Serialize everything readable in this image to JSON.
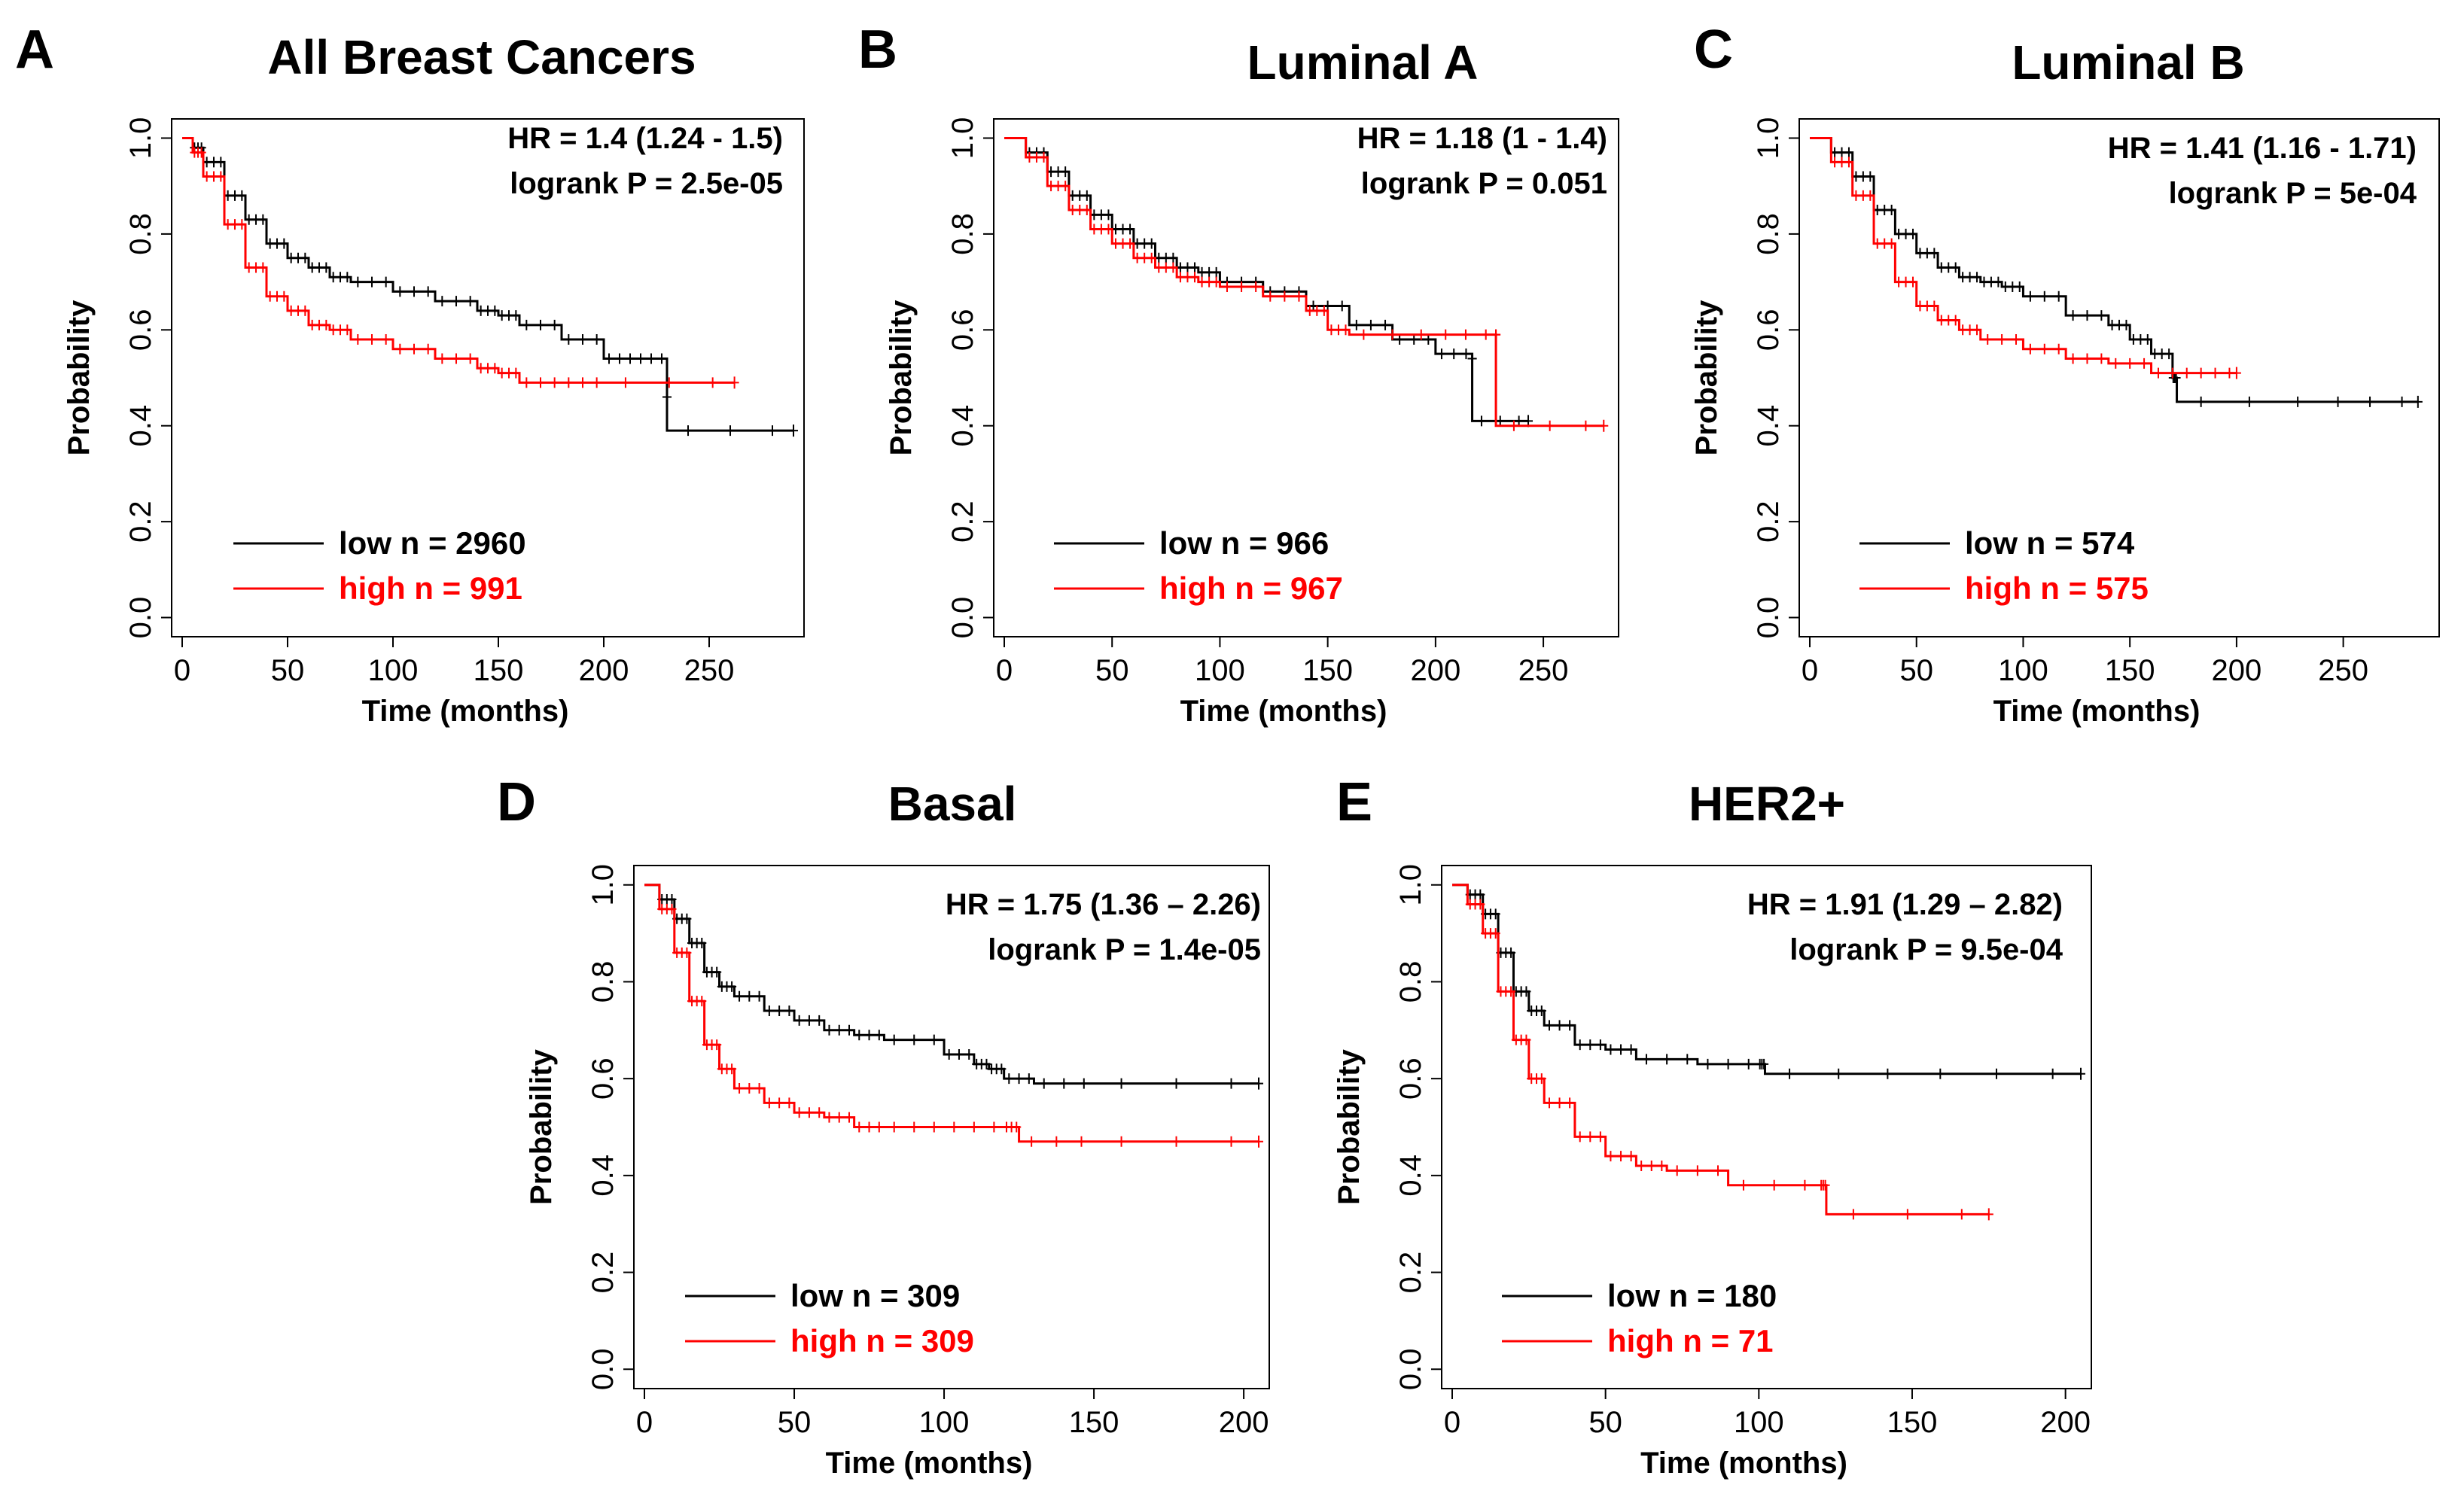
{
  "figure": {
    "type": "Kaplan-Meier survival curves"
  },
  "chart_data": [
    {
      "type": "line",
      "panel": "A",
      "title": "All Breast Cancers",
      "xlabel": "Time (months)",
      "ylabel": "Probability",
      "xlim": [
        0,
        290
      ],
      "ylim": [
        0,
        1
      ],
      "xticks": [
        0,
        50,
        100,
        150,
        200,
        250
      ],
      "yticks": [
        0.0,
        0.2,
        0.4,
        0.6,
        0.8,
        1.0
      ],
      "xtick_labels": [
        "0",
        "50",
        "100",
        "150",
        "200",
        "250"
      ],
      "ytick_labels": [
        "0.0",
        "0.2",
        "0.4",
        "0.6",
        "0.8",
        "1.0"
      ],
      "hr_text": "HR = 1.4 (1.24 - 1.5)",
      "logrank_text": "logrank  P = 2.5e-05",
      "legend": {
        "low": "low n = 2960",
        "high": "high n = 991"
      },
      "series": [
        {
          "name": "low",
          "color": "#000000",
          "x": [
            0,
            5,
            10,
            20,
            30,
            40,
            50,
            60,
            70,
            80,
            100,
            120,
            140,
            150,
            160,
            180,
            200,
            215,
            230,
            230,
            290
          ],
          "y": [
            1.0,
            0.98,
            0.95,
            0.88,
            0.83,
            0.78,
            0.75,
            0.73,
            0.71,
            0.7,
            0.68,
            0.66,
            0.64,
            0.63,
            0.61,
            0.58,
            0.54,
            0.54,
            0.46,
            0.39,
            0.39
          ]
        },
        {
          "name": "high",
          "color": "#ff0000",
          "x": [
            0,
            5,
            10,
            20,
            30,
            40,
            50,
            60,
            70,
            80,
            100,
            120,
            140,
            150,
            160,
            180,
            200,
            262
          ],
          "y": [
            1.0,
            0.97,
            0.92,
            0.82,
            0.73,
            0.67,
            0.64,
            0.61,
            0.6,
            0.58,
            0.56,
            0.54,
            0.52,
            0.51,
            0.49,
            0.49,
            0.49,
            0.49
          ]
        }
      ]
    },
    {
      "type": "line",
      "panel": "B",
      "title": "Luminal A",
      "xlabel": "Time (months)",
      "ylabel": "Probability",
      "xlim": [
        0,
        280
      ],
      "ylim": [
        0,
        1
      ],
      "xticks": [
        0,
        50,
        100,
        150,
        200,
        250
      ],
      "yticks": [
        0.0,
        0.2,
        0.4,
        0.6,
        0.8,
        1.0
      ],
      "xtick_labels": [
        "0",
        "50",
        "100",
        "150",
        "200",
        "250"
      ],
      "ytick_labels": [
        "0.0",
        "0.2",
        "0.4",
        "0.6",
        "0.8",
        "1.0"
      ],
      "hr_text": "HR = 1.18 (1 - 1.4)",
      "logrank_text": "logrank  P = 0.051",
      "legend": {
        "low": "low n = 966",
        "high": "high n = 967"
      },
      "series": [
        {
          "name": "low",
          "color": "#000000",
          "x": [
            0,
            10,
            20,
            30,
            40,
            50,
            60,
            70,
            80,
            90,
            100,
            120,
            140,
            160,
            180,
            200,
            217,
            217,
            243
          ],
          "y": [
            1.0,
            0.97,
            0.93,
            0.88,
            0.84,
            0.81,
            0.78,
            0.75,
            0.73,
            0.72,
            0.7,
            0.68,
            0.65,
            0.61,
            0.58,
            0.55,
            0.54,
            0.41,
            0.41
          ]
        },
        {
          "name": "high",
          "color": "#ff0000",
          "x": [
            0,
            10,
            20,
            30,
            40,
            50,
            60,
            70,
            80,
            90,
            100,
            120,
            140,
            150,
            160,
            200,
            228,
            228,
            278
          ],
          "y": [
            1.0,
            0.96,
            0.9,
            0.85,
            0.81,
            0.78,
            0.75,
            0.73,
            0.71,
            0.7,
            0.69,
            0.67,
            0.64,
            0.6,
            0.59,
            0.59,
            0.59,
            0.4,
            0.4
          ]
        }
      ]
    },
    {
      "type": "line",
      "panel": "C",
      "title": "Luminal B",
      "xlabel": "Time (months)",
      "ylabel": "Probability",
      "xlim": [
        0,
        290
      ],
      "ylim": [
        0,
        1
      ],
      "xticks": [
        0,
        50,
        100,
        150,
        200,
        250
      ],
      "yticks": [
        0.0,
        0.2,
        0.4,
        0.6,
        0.8,
        1.0
      ],
      "xtick_labels": [
        "0",
        "50",
        "100",
        "150",
        "200",
        "250"
      ],
      "ytick_labels": [
        "0.0",
        "0.2",
        "0.4",
        "0.6",
        "0.8",
        "1.0"
      ],
      "hr_text": "HR = 1.41 (1.16 - 1.71)",
      "logrank_text": "logrank  P = 5e-04",
      "legend": {
        "low": "low n = 574",
        "high": "high n = 575"
      },
      "series": [
        {
          "name": "low",
          "color": "#000000",
          "x": [
            0,
            10,
            20,
            30,
            40,
            50,
            60,
            70,
            80,
            90,
            100,
            120,
            140,
            150,
            160,
            170,
            172,
            240,
            285
          ],
          "y": [
            1.0,
            0.97,
            0.92,
            0.85,
            0.8,
            0.76,
            0.73,
            0.71,
            0.7,
            0.69,
            0.67,
            0.63,
            0.61,
            0.58,
            0.55,
            0.5,
            0.45,
            0.45,
            0.45
          ]
        },
        {
          "name": "high",
          "color": "#ff0000",
          "x": [
            0,
            10,
            20,
            30,
            40,
            50,
            60,
            70,
            80,
            100,
            120,
            140,
            160,
            180,
            200
          ],
          "y": [
            1.0,
            0.95,
            0.88,
            0.78,
            0.7,
            0.65,
            0.62,
            0.6,
            0.58,
            0.56,
            0.54,
            0.53,
            0.51,
            0.51,
            0.51
          ]
        }
      ]
    },
    {
      "type": "line",
      "panel": "D",
      "title": "Basal",
      "xlabel": "Time (months)",
      "ylabel": "Probability",
      "xlim": [
        0,
        205
      ],
      "ylim": [
        0,
        1
      ],
      "xticks": [
        0,
        50,
        100,
        150,
        200
      ],
      "yticks": [
        0.0,
        0.2,
        0.4,
        0.6,
        0.8,
        1.0
      ],
      "xtick_labels": [
        "0",
        "50",
        "100",
        "150",
        "200"
      ],
      "ytick_labels": [
        "0.0",
        "0.2",
        "0.4",
        "0.6",
        "0.8",
        "1.0"
      ],
      "hr_text": "HR = 1.75 (1.36 – 2.26)",
      "logrank_text": "logrank  P = 1.4e-05",
      "legend": {
        "low": "low n = 309",
        "high": "high n = 309"
      },
      "series": [
        {
          "name": "low",
          "color": "#000000",
          "x": [
            0,
            5,
            10,
            15,
            20,
            25,
            30,
            40,
            50,
            60,
            70,
            80,
            100,
            110,
            115,
            120,
            130,
            150,
            205
          ],
          "y": [
            1.0,
            0.97,
            0.93,
            0.88,
            0.82,
            0.79,
            0.77,
            0.74,
            0.72,
            0.7,
            0.69,
            0.68,
            0.65,
            0.63,
            0.62,
            0.6,
            0.59,
            0.59,
            0.59
          ]
        },
        {
          "name": "high",
          "color": "#ff0000",
          "x": [
            0,
            5,
            10,
            15,
            20,
            25,
            30,
            40,
            50,
            60,
            70,
            80,
            100,
            120,
            125,
            150,
            205
          ],
          "y": [
            1.0,
            0.95,
            0.86,
            0.76,
            0.67,
            0.62,
            0.58,
            0.55,
            0.53,
            0.52,
            0.5,
            0.5,
            0.5,
            0.5,
            0.47,
            0.47,
            0.47
          ]
        }
      ]
    },
    {
      "type": "line",
      "panel": "E",
      "title": "HER2+",
      "xlabel": "Time (months)",
      "ylabel": "Probability",
      "xlim": [
        0,
        205
      ],
      "ylim": [
        0,
        1
      ],
      "xticks": [
        0,
        50,
        100,
        150,
        200
      ],
      "yticks": [
        0.0,
        0.2,
        0.4,
        0.6,
        0.8,
        1.0
      ],
      "xtick_labels": [
        "0",
        "50",
        "100",
        "150",
        "200"
      ],
      "ytick_labels": [
        "0.0",
        "0.2",
        "0.4",
        "0.6",
        "0.8",
        "1.0"
      ],
      "hr_text": "HR = 1.91 (1.29 – 2.82)",
      "logrank_text": "logrank  P = 9.5e-04",
      "legend": {
        "low": "low n = 180",
        "high": "high n = 71"
      },
      "series": [
        {
          "name": "low",
          "color": "#000000",
          "x": [
            0,
            5,
            10,
            15,
            20,
            25,
            30,
            40,
            50,
            60,
            80,
            100,
            102,
            150,
            205
          ],
          "y": [
            1.0,
            0.98,
            0.94,
            0.86,
            0.78,
            0.74,
            0.71,
            0.67,
            0.66,
            0.64,
            0.63,
            0.63,
            0.61,
            0.61,
            0.61
          ]
        },
        {
          "name": "high",
          "color": "#ff0000",
          "x": [
            0,
            5,
            10,
            15,
            20,
            25,
            30,
            40,
            50,
            60,
            70,
            90,
            120,
            122,
            175
          ],
          "y": [
            1.0,
            0.96,
            0.9,
            0.78,
            0.68,
            0.6,
            0.55,
            0.48,
            0.44,
            0.42,
            0.41,
            0.38,
            0.38,
            0.32,
            0.32
          ]
        }
      ]
    }
  ]
}
